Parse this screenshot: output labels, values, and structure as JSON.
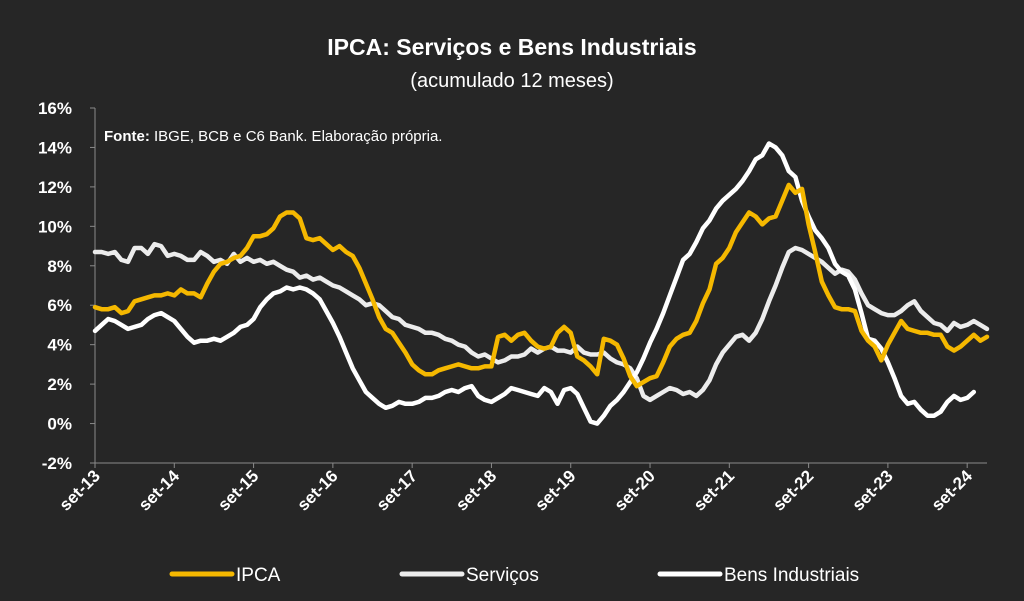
{
  "chart_data": {
    "type": "line",
    "title": "IPCA: Serviços e Bens Industriais",
    "subtitle": "(acumulado 12 meses)",
    "source_label": "Fonte:",
    "source_text": " IBGE, BCB e C6 Bank. Elaboração própria.",
    "y_unit": "%",
    "ylim": [
      -2,
      16
    ],
    "yticks": [
      -2,
      0,
      2,
      4,
      6,
      8,
      10,
      12,
      14,
      16
    ],
    "ytick_labels": [
      "-2%",
      "0%",
      "2%",
      "4%",
      "6%",
      "8%",
      "10%",
      "12%",
      "14%",
      "16%"
    ],
    "x_tick_labels": [
      "set-13",
      "set-14",
      "set-15",
      "set-16",
      "set-17",
      "set-18",
      "set-19",
      "set-20",
      "set-21",
      "set-22",
      "set-23",
      "set-24"
    ],
    "x_start": "set-13",
    "x_end": "set-24",
    "grid": false,
    "legend_position": "bottom",
    "series": [
      {
        "name": "IPCA",
        "color": "#F5B800",
        "values": [
          5.9,
          5.8,
          5.8,
          5.9,
          5.6,
          5.7,
          6.2,
          6.3,
          6.4,
          6.5,
          6.5,
          6.6,
          6.5,
          6.8,
          6.6,
          6.6,
          6.4,
          7.1,
          7.7,
          8.1,
          8.2,
          8.4,
          8.5,
          8.9,
          9.5,
          9.5,
          9.6,
          9.9,
          10.5,
          10.7,
          10.7,
          10.4,
          9.4,
          9.3,
          9.4,
          9.1,
          8.8,
          9.0,
          8.7,
          8.5,
          7.9,
          7.1,
          6.3,
          5.4,
          4.8,
          4.6,
          4.1,
          3.6,
          3.0,
          2.7,
          2.5,
          2.5,
          2.7,
          2.8,
          2.9,
          3.0,
          2.9,
          2.8,
          2.8,
          2.9,
          2.9,
          4.4,
          4.5,
          4.2,
          4.5,
          4.6,
          4.2,
          3.9,
          3.8,
          3.9,
          4.6,
          4.9,
          4.6,
          3.4,
          3.2,
          2.9,
          2.5,
          4.3,
          4.2,
          4.0,
          3.3,
          2.4,
          1.9,
          2.1,
          2.3,
          2.4,
          3.1,
          3.9,
          4.3,
          4.5,
          4.6,
          5.2,
          6.1,
          6.8,
          8.1,
          8.4,
          8.9,
          9.7,
          10.2,
          10.7,
          10.5,
          10.1,
          10.4,
          10.5,
          11.3,
          12.1,
          11.7,
          11.9,
          10.1,
          8.7,
          7.2,
          6.5,
          5.9,
          5.8,
          5.8,
          5.7,
          4.7,
          4.2,
          3.9,
          3.2,
          4.0,
          4.6,
          5.2,
          4.8,
          4.7,
          4.6,
          4.6,
          4.5,
          4.5,
          3.9,
          3.7,
          3.9,
          4.2,
          4.5,
          4.2,
          4.4
        ]
      },
      {
        "name": "Serviços",
        "color": "#ECECEC",
        "values": [
          8.7,
          8.7,
          8.6,
          8.7,
          8.3,
          8.2,
          8.9,
          8.9,
          8.6,
          9.1,
          9.0,
          8.5,
          8.6,
          8.5,
          8.3,
          8.3,
          8.7,
          8.5,
          8.2,
          8.3,
          8.1,
          8.6,
          8.2,
          8.4,
          8.2,
          8.3,
          8.1,
          8.2,
          8.0,
          7.8,
          7.7,
          7.4,
          7.5,
          7.3,
          7.4,
          7.2,
          7.0,
          6.9,
          6.7,
          6.5,
          6.3,
          6.0,
          6.1,
          6.0,
          5.7,
          5.4,
          5.3,
          5.0,
          4.9,
          4.8,
          4.6,
          4.6,
          4.5,
          4.3,
          4.2,
          4.0,
          3.9,
          3.6,
          3.4,
          3.5,
          3.3,
          3.1,
          3.2,
          3.4,
          3.4,
          3.5,
          3.8,
          3.6,
          3.8,
          3.9,
          3.7,
          3.7,
          3.6,
          3.9,
          3.6,
          3.5,
          3.5,
          3.6,
          3.3,
          3.1,
          3.0,
          2.8,
          2.3,
          1.4,
          1.2,
          1.4,
          1.6,
          1.8,
          1.7,
          1.5,
          1.6,
          1.4,
          1.7,
          2.2,
          3.0,
          3.6,
          4.0,
          4.4,
          4.5,
          4.2,
          4.6,
          5.3,
          6.2,
          7.0,
          7.9,
          8.7,
          8.9,
          8.8,
          8.6,
          8.4,
          8.2,
          7.9,
          7.6,
          7.8,
          7.7,
          7.3,
          6.6,
          6.0,
          5.8,
          5.6,
          5.5,
          5.5,
          5.7,
          6.0,
          6.2,
          5.7,
          5.4,
          5.1,
          5.0,
          4.7,
          5.1,
          4.9,
          5.0,
          5.2,
          5.0,
          4.8
        ]
      },
      {
        "name": "Bens Industriais",
        "color": "#FFFFFF",
        "values": [
          4.7,
          5.0,
          5.3,
          5.2,
          5.0,
          4.8,
          4.9,
          5.0,
          5.3,
          5.5,
          5.6,
          5.4,
          5.2,
          4.8,
          4.4,
          4.1,
          4.2,
          4.2,
          4.3,
          4.2,
          4.4,
          4.6,
          4.9,
          5.0,
          5.3,
          5.9,
          6.3,
          6.6,
          6.7,
          6.9,
          6.8,
          6.9,
          6.8,
          6.6,
          6.3,
          5.7,
          5.1,
          4.4,
          3.6,
          2.8,
          2.2,
          1.6,
          1.3,
          1.0,
          0.8,
          0.9,
          1.1,
          1.0,
          1.0,
          1.1,
          1.3,
          1.3,
          1.4,
          1.6,
          1.7,
          1.6,
          1.8,
          1.9,
          1.4,
          1.2,
          1.1,
          1.3,
          1.5,
          1.8,
          1.7,
          1.6,
          1.5,
          1.4,
          1.8,
          1.6,
          1.0,
          1.7,
          1.8,
          1.5,
          0.8,
          0.1,
          0.0,
          0.4,
          0.9,
          1.2,
          1.6,
          2.1,
          2.6,
          3.3,
          4.1,
          4.8,
          5.6,
          6.5,
          7.4,
          8.3,
          8.6,
          9.2,
          9.9,
          10.3,
          10.9,
          11.3,
          11.6,
          11.9,
          12.3,
          12.8,
          13.4,
          13.6,
          14.2,
          14.0,
          13.6,
          12.8,
          12.5,
          11.3,
          10.5,
          9.8,
          9.4,
          8.9,
          8.1,
          7.7,
          7.5,
          6.8,
          5.6,
          4.3,
          4.2,
          3.8,
          3.1,
          2.3,
          1.4,
          1.0,
          1.1,
          0.7,
          0.4,
          0.4,
          0.6,
          1.1,
          1.4,
          1.2,
          1.3,
          1.6
        ]
      }
    ]
  }
}
